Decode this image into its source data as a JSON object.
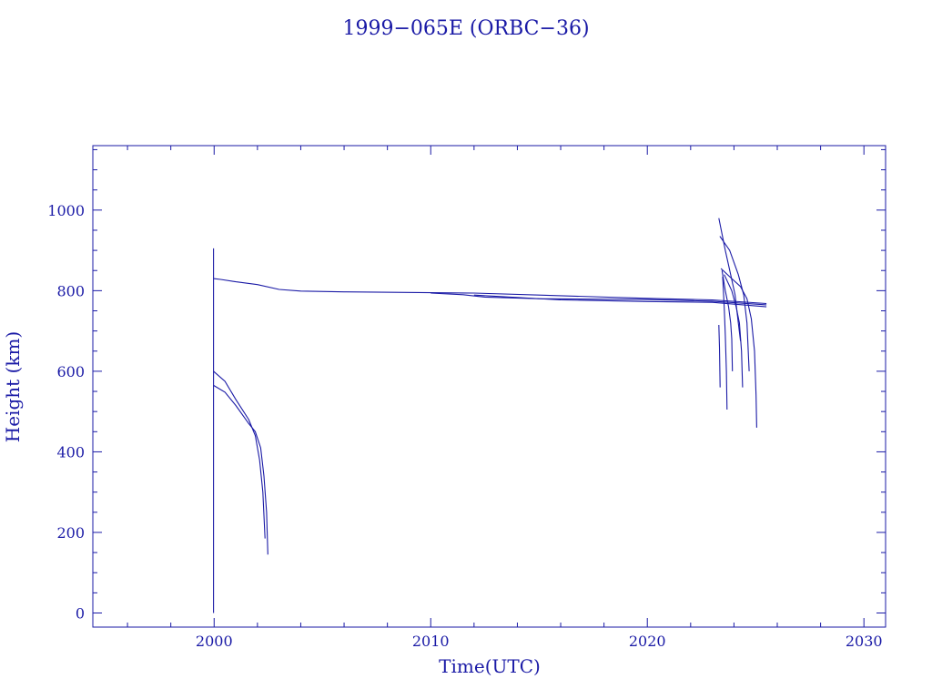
{
  "chart_data": {
    "type": "line",
    "title": "1999−065E (ORBC−36)",
    "xlabel": "Time(UTC)",
    "ylabel": "Height (km)",
    "xlim": [
      1994.4,
      2031.0
    ],
    "ylim": [
      -35,
      1160
    ],
    "xticks": [
      2000,
      2010,
      2020,
      2030
    ],
    "yticks": [
      0,
      200,
      400,
      600,
      800,
      1000
    ],
    "grid": false,
    "line_color": "#1a1aa6",
    "series": [
      {
        "x": [
          1999.97,
          1999.97
        ],
        "y": [
          0,
          905
        ]
      },
      {
        "x": [
          1999.97,
          2000.3,
          2001.0,
          2002.0,
          2003.0,
          2004.0,
          2006.0,
          2010.0,
          2012.0,
          2015.0,
          2020.0,
          2023.0,
          2025.5
        ],
        "y": [
          830,
          828,
          822,
          815,
          803,
          799,
          797,
          795,
          794,
          789,
          781,
          777,
          768
        ]
      },
      {
        "x": [
          2010.0,
          2011.5,
          2012.5,
          2015.0,
          2020.0,
          2023.0,
          2025.5
        ],
        "y": [
          794,
          790,
          784,
          780,
          778,
          774,
          765
        ]
      },
      {
        "x": [
          2012.0,
          2016.0,
          2020.0,
          2023.0,
          2025.5
        ],
        "y": [
          789,
          777,
          773,
          771,
          760
        ]
      },
      {
        "x": [
          1999.97,
          2000.5,
          2001.0,
          2001.6,
          2001.9,
          2002.1,
          2002.25,
          2002.35
        ],
        "y": [
          600,
          575,
          530,
          480,
          440,
          380,
          300,
          185
        ]
      },
      {
        "x": [
          1999.97,
          2000.5,
          2001.0,
          2001.6,
          2001.9,
          2002.15,
          2002.3,
          2002.42,
          2002.48
        ],
        "y": [
          565,
          548,
          515,
          470,
          450,
          410,
          340,
          250,
          145
        ]
      },
      {
        "x": [
          2023.3,
          2023.6,
          2023.85,
          2024.05,
          2024.2,
          2024.3
        ],
        "y": [
          980,
          900,
          840,
          790,
          720,
          675
        ]
      },
      {
        "x": [
          2023.35,
          2023.8,
          2024.2,
          2024.45,
          2024.6,
          2024.7
        ],
        "y": [
          935,
          900,
          840,
          790,
          720,
          600
        ]
      },
      {
        "x": [
          2023.4,
          2023.9,
          2024.3,
          2024.6,
          2024.8,
          2024.95,
          2025.02,
          2025.05
        ],
        "y": [
          855,
          830,
          810,
          780,
          730,
          650,
          540,
          460
        ]
      },
      {
        "x": [
          2023.45,
          2023.6,
          2023.75,
          2023.85,
          2023.9,
          2023.93
        ],
        "y": [
          850,
          800,
          760,
          720,
          680,
          600
        ]
      },
      {
        "x": [
          2023.55,
          2023.9,
          2024.1,
          2024.25,
          2024.35,
          2024.4
        ],
        "y": [
          840,
          800,
          760,
          720,
          650,
          560
        ]
      },
      {
        "x": [
          2023.3,
          2023.33,
          2023.36
        ],
        "y": [
          715,
          660,
          560
        ]
      },
      {
        "x": [
          2023.48,
          2023.55,
          2023.6,
          2023.65,
          2023.68
        ],
        "y": [
          835,
          760,
          690,
          600,
          505
        ]
      }
    ]
  }
}
